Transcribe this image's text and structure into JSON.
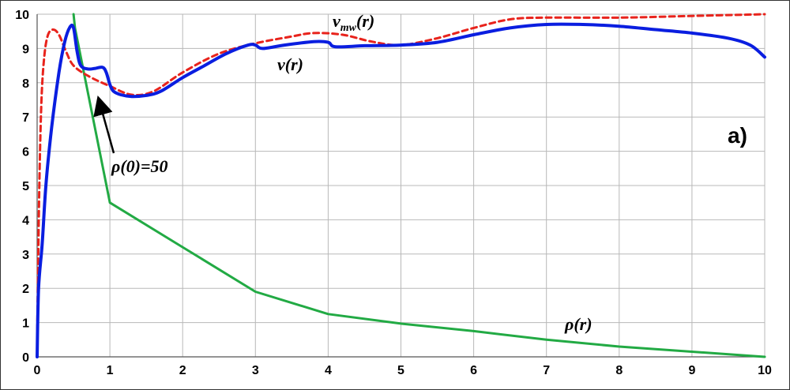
{
  "chart_data": {
    "type": "line",
    "title": "",
    "xlabel": "",
    "ylabel": "",
    "xlim": [
      0,
      10
    ],
    "ylim": [
      0,
      10
    ],
    "x_ticks": [
      0,
      1,
      2,
      3,
      4,
      5,
      6,
      7,
      8,
      9,
      10
    ],
    "y_ticks": [
      0,
      1,
      2,
      3,
      4,
      5,
      6,
      7,
      8,
      9,
      10
    ],
    "grid": true,
    "series": [
      {
        "name": "v(r)",
        "color": "#0a1ee0",
        "style": "solid",
        "points": [
          [
            0,
            0
          ],
          [
            0.02,
            2.0
          ],
          [
            0.07,
            3.3
          ],
          [
            0.12,
            5.0
          ],
          [
            0.2,
            6.7
          ],
          [
            0.3,
            8.3
          ],
          [
            0.38,
            9.2
          ],
          [
            0.45,
            9.62
          ],
          [
            0.5,
            9.6
          ],
          [
            0.55,
            8.9
          ],
          [
            0.6,
            8.5
          ],
          [
            0.7,
            8.4
          ],
          [
            0.8,
            8.42
          ],
          [
            0.9,
            8.45
          ],
          [
            0.95,
            8.3
          ],
          [
            1.0,
            7.95
          ],
          [
            1.05,
            7.75
          ],
          [
            1.15,
            7.65
          ],
          [
            1.3,
            7.6
          ],
          [
            1.5,
            7.63
          ],
          [
            1.7,
            7.75
          ],
          [
            2.0,
            8.15
          ],
          [
            2.3,
            8.5
          ],
          [
            2.6,
            8.85
          ],
          [
            2.9,
            9.1
          ],
          [
            3.0,
            9.1
          ],
          [
            3.1,
            9.0
          ],
          [
            3.4,
            9.1
          ],
          [
            3.8,
            9.2
          ],
          [
            4.0,
            9.18
          ],
          [
            4.1,
            9.05
          ],
          [
            4.5,
            9.08
          ],
          [
            5.0,
            9.1
          ],
          [
            5.5,
            9.18
          ],
          [
            6.0,
            9.4
          ],
          [
            6.5,
            9.6
          ],
          [
            7.0,
            9.7
          ],
          [
            7.5,
            9.7
          ],
          [
            8.0,
            9.65
          ],
          [
            8.5,
            9.55
          ],
          [
            9.0,
            9.45
          ],
          [
            9.5,
            9.3
          ],
          [
            9.8,
            9.1
          ],
          [
            10.0,
            8.75
          ]
        ]
      },
      {
        "name": "v_mw(r)",
        "color": "#e8231c",
        "style": "dashed",
        "points": [
          [
            0,
            0.5
          ],
          [
            0.03,
            5.0
          ],
          [
            0.06,
            7.5
          ],
          [
            0.1,
            8.8
          ],
          [
            0.15,
            9.4
          ],
          [
            0.22,
            9.55
          ],
          [
            0.3,
            9.4
          ],
          [
            0.4,
            8.9
          ],
          [
            0.5,
            8.5
          ],
          [
            0.7,
            8.2
          ],
          [
            1.0,
            7.9
          ],
          [
            1.3,
            7.65
          ],
          [
            1.6,
            7.75
          ],
          [
            2.0,
            8.3
          ],
          [
            2.5,
            8.85
          ],
          [
            3.0,
            9.15
          ],
          [
            3.5,
            9.35
          ],
          [
            3.8,
            9.45
          ],
          [
            4.2,
            9.4
          ],
          [
            4.6,
            9.2
          ],
          [
            5.0,
            9.1
          ],
          [
            5.5,
            9.3
          ],
          [
            6.0,
            9.6
          ],
          [
            6.5,
            9.85
          ],
          [
            7.0,
            9.9
          ],
          [
            8.0,
            9.9
          ],
          [
            9.0,
            9.95
          ],
          [
            10.0,
            10.0
          ]
        ]
      },
      {
        "name": "ρ(r)",
        "color": "#22aa44",
        "style": "solid",
        "points": [
          [
            0.5,
            10.0
          ],
          [
            0.52,
            9.6
          ],
          [
            1.0,
            4.5
          ],
          [
            2.0,
            3.2
          ],
          [
            3.0,
            1.9
          ],
          [
            4.0,
            1.25
          ],
          [
            5.0,
            0.97
          ],
          [
            6.0,
            0.75
          ],
          [
            7.0,
            0.5
          ],
          [
            8.0,
            0.3
          ],
          [
            9.0,
            0.15
          ],
          [
            10.0,
            0.0
          ]
        ]
      }
    ],
    "annotations": {
      "v_label": "v(r)",
      "vmw_main": "v",
      "vmw_sub": "mw",
      "vmw_suffix": "(r)",
      "rho_label": "ρ(r)",
      "arrow_label": "ρ(0)=50",
      "panel_label": "a)"
    }
  }
}
